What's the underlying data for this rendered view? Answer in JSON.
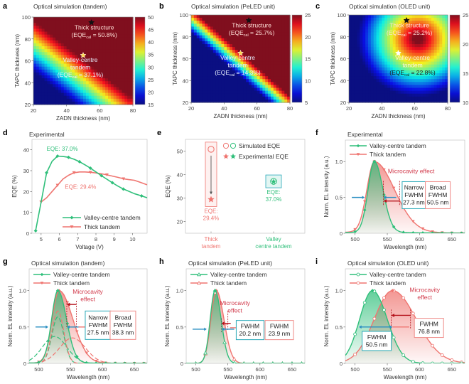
{
  "colors": {
    "green": "#2fbf7a",
    "red": "#ef7570",
    "dark_red": "#b5121b",
    "blue_arrow": "#2a8fc2",
    "teal_box": "#29a9b8",
    "pink_box": "#ef8a87",
    "axis": "#555555",
    "frame": "#aaaaaa"
  },
  "chart_data": [
    {
      "id": "a",
      "panel_label": "a",
      "type": "heatmap",
      "title": "Optical simulation (tandem)",
      "xlabel": "ZADN thickness (nm)",
      "ylabel": "TAPC thickness (nm)",
      "xlim": [
        20,
        80
      ],
      "ylim": [
        20,
        100
      ],
      "xticks": [
        "20",
        "40",
        "60",
        "80"
      ],
      "yticks": [
        "20",
        "40",
        "60",
        "80",
        "100"
      ],
      "colorbar": {
        "min": 15,
        "max": 50,
        "ticks": [
          "15",
          "20",
          "25",
          "30",
          "35",
          "40",
          "45",
          "50"
        ]
      },
      "markers": [
        {
          "name": "thick-structure",
          "x": 55,
          "y": 95,
          "style": "filled-star",
          "label_lines": [
            "Thick structure",
            "(EQE",
            "cal",
            " = 50.8%)"
          ],
          "value": 50.8
        },
        {
          "name": "valley-centre-tandem",
          "x": 50,
          "y": 65,
          "style": "open-star",
          "label_lines": [
            "Valley-centre",
            "tandem",
            "(EQE",
            "cal",
            " = 37.1%)"
          ],
          "value": 37.1
        }
      ]
    },
    {
      "id": "b",
      "panel_label": "b",
      "type": "heatmap",
      "title": "Optical simulation (PeLED unit)",
      "xlabel": "ZADN thickness (nm)",
      "ylabel": "TAPC thickness (nm)",
      "xlim": [
        20,
        80
      ],
      "ylim": [
        20,
        100
      ],
      "xticks": [
        "20",
        "40",
        "60",
        "80"
      ],
      "yticks": [
        "20",
        "40",
        "60",
        "80",
        "100"
      ],
      "colorbar": {
        "min": 5,
        "max": 25,
        "ticks": [
          "5",
          "10",
          "15",
          "20",
          "25"
        ]
      },
      "markers": [
        {
          "name": "thick-structure",
          "x": 55,
          "y": 95,
          "style": "filled-star",
          "label_lines": [
            "Thick structure",
            "(EQE",
            "cal",
            " = 25.7%)"
          ],
          "value": 25.7
        },
        {
          "name": "valley-centre-tandem",
          "x": 50,
          "y": 65,
          "style": "open-star",
          "label_lines": [
            "Valley-centre",
            "tandem",
            "(EQE",
            "cal",
            " = 14.3%)"
          ],
          "value": 14.3
        }
      ]
    },
    {
      "id": "c",
      "panel_label": "c",
      "type": "heatmap",
      "title": "Optical simulation (OLED unit)",
      "xlabel": "ZADN thickness (nm)",
      "ylabel": "TAPC thickness (nm)",
      "xlim": [
        20,
        80
      ],
      "ylim": [
        20,
        100
      ],
      "xticks": [
        "20",
        "40",
        "60",
        "80"
      ],
      "yticks": [
        "20",
        "40",
        "60",
        "80",
        "100"
      ],
      "colorbar": {
        "min": 10,
        "max": 25,
        "ticks": [
          "10",
          "15",
          "20",
          "25"
        ]
      },
      "markers": [
        {
          "name": "thick-structure",
          "x": 55,
          "y": 95,
          "style": "filled-star",
          "label_lines": [
            "Thick structure",
            "(EQE",
            "cal",
            " = 25.2%)"
          ],
          "value": 25.2
        },
        {
          "name": "valley-centre-tandem",
          "x": 50,
          "y": 65,
          "style": "open-star-white",
          "label_lines": [
            "Valley-centre",
            "tandem",
            "(EQE",
            "cal",
            " = 22.8%)"
          ],
          "value": 22.8
        }
      ]
    },
    {
      "id": "d",
      "panel_label": "d",
      "type": "line",
      "title": "Experimental",
      "xlabel": "Voltage (V)",
      "ylabel": "EQE (%)",
      "xlim": [
        4.5,
        10.8
      ],
      "ylim": [
        0,
        45
      ],
      "xticks": [
        5,
        6,
        7,
        8,
        9,
        10
      ],
      "yticks": [
        0,
        10,
        20,
        30,
        40
      ],
      "legend": "bottom-right",
      "series": [
        {
          "name": "Valley-centre tandem",
          "color_key": "green",
          "marker": "diamond",
          "x": [
            4.7,
            5.0,
            5.3,
            5.6,
            5.9,
            6.2,
            6.5,
            6.8,
            7.1,
            7.4,
            7.7,
            8.0,
            8.3,
            8.6,
            8.9,
            9.2,
            9.5,
            9.8,
            10.1,
            10.5,
            10.8
          ],
          "y": [
            1.2,
            15,
            29,
            34.5,
            37.0,
            36.8,
            36.4,
            35.5,
            34.3,
            32.8,
            31.2,
            29.4,
            27.6,
            25.9,
            24.2,
            22.6,
            21.2,
            20.1,
            19.0,
            17.9,
            17.0
          ],
          "marker_indices": [
            0,
            2,
            4,
            6,
            8,
            10,
            12,
            14,
            16,
            19
          ]
        },
        {
          "name": "Thick tandem",
          "color_key": "red",
          "marker": "triangle-down",
          "x": [
            5.0,
            5.3,
            5.6,
            5.9,
            6.2,
            6.5,
            6.8,
            7.1,
            7.4,
            7.7,
            8.0,
            8.3,
            8.6,
            8.9,
            9.2,
            9.5,
            9.8,
            10.1,
            10.4,
            10.8
          ],
          "y": [
            15,
            17,
            20,
            23,
            26,
            27.8,
            29.0,
            29.4,
            29.4,
            29.2,
            28.9,
            28.5,
            28.0,
            27.4,
            26.8,
            26.1,
            25.7,
            25.4,
            24.5,
            23.2
          ],
          "marker_indices": [
            0,
            3,
            6,
            9,
            12,
            15
          ]
        }
      ],
      "annotations": [
        {
          "text": "EQE: 37.0%",
          "x": 5.3,
          "y": 39.5,
          "color_key": "green"
        },
        {
          "text": "EQE: 29.4%",
          "x": 6.3,
          "y": 21.3,
          "color_key": "red"
        }
      ]
    },
    {
      "id": "e",
      "panel_label": "e",
      "type": "scatter",
      "title": "",
      "xlabel": "",
      "ylabel": "EQE (%)",
      "ylim": [
        15,
        55
      ],
      "yticks": [
        20,
        30,
        40,
        50
      ],
      "categories": [
        "Thick tandem",
        "Valley centre tandem"
      ],
      "category_lines": [
        [
          "Thick",
          "tandem"
        ],
        [
          "Valley",
          "centre tandem"
        ]
      ],
      "legend_entries": [
        "Simulated EQE",
        "Experimental EQE"
      ],
      "points": [
        {
          "category": "Thick tandem",
          "simulated": 50.8,
          "experimental": 29.4,
          "color_key": "red",
          "label_lines": [
            "EQE:",
            "29.4%"
          ]
        },
        {
          "category": "Valley centre tandem",
          "simulated": 37.1,
          "experimental": 37.0,
          "color_key": "green",
          "label_lines": [
            "EQE:",
            "37.0%"
          ]
        }
      ]
    },
    {
      "id": "f",
      "panel_label": "f",
      "type": "area",
      "title": "Experimental",
      "xlabel": "Wavelength (nm)",
      "ylabel": "Norm. EL intensity (a.u.)",
      "xlim": [
        485,
        670
      ],
      "ylim": [
        0,
        1.3
      ],
      "xticks": [
        500,
        550,
        600,
        650
      ],
      "yticks": [
        0,
        0.5,
        1.0
      ],
      "ytick_labels": [
        "0",
        "0.5",
        "1.0"
      ],
      "legend": "top-left",
      "series": [
        {
          "name": "Valley-centre tandem",
          "color_key": "green",
          "marker": "diamond",
          "peak": 530,
          "fwhm": 27.3,
          "skew": 1.35,
          "tail": 0.02
        },
        {
          "name": "Thick tandem",
          "color_key": "red",
          "marker": "triangle-down",
          "peak": 530,
          "fwhm": 50.5,
          "skew": 2.7,
          "tail": 0.03
        }
      ],
      "microcavity_label": "Microcavity effect",
      "fwhm_boxes": [
        {
          "lines": [
            "Narrow",
            "FWHM",
            "27.3 nm"
          ],
          "color_key": "teal_box"
        },
        {
          "lines": [
            "Broad",
            "FWHM",
            "50.5 nm"
          ],
          "color_key": "pink_box"
        }
      ],
      "dashed_markers_x": [
        544,
        569
      ]
    },
    {
      "id": "g",
      "panel_label": "g",
      "type": "area",
      "title": "Optical simulation (tandem)",
      "xlabel": "Wavelength (nm)",
      "ylabel": "Norm. EL intensity (a.u.)",
      "xlim": [
        485,
        670
      ],
      "ylim": [
        0,
        1.3
      ],
      "xticks": [
        500,
        550,
        600,
        650
      ],
      "yticks": [
        0,
        0.5,
        1.0
      ],
      "ytick_labels": [
        "0",
        "0.5",
        "1.0"
      ],
      "legend": "top-left",
      "series": [
        {
          "name": "Valley-centre tandem",
          "color_key": "green",
          "marker": "diamond",
          "peak": 530,
          "fwhm": 27.5,
          "skew": 1.4,
          "tail": 0.01
        },
        {
          "name": "Thick tandem",
          "color_key": "red",
          "marker": "triangle-down",
          "peak": 532,
          "fwhm": 38.3,
          "skew": 2.0,
          "tail": 0.01
        }
      ],
      "components": [
        {
          "color_key": "green",
          "peak": 530,
          "fwhm": 22,
          "amp": 0.64
        },
        {
          "color_key": "green",
          "peak": 525,
          "fwhm": 45,
          "amp": 0.37
        },
        {
          "color_key": "red",
          "peak": 530,
          "fwhm": 22,
          "amp": 0.72
        },
        {
          "color_key": "red",
          "peak": 553,
          "fwhm": 48,
          "amp": 0.35
        }
      ],
      "microcavity_label_lines": [
        "Microcavity",
        "effect"
      ],
      "fwhm_boxes": [
        {
          "lines": [
            "Narrow",
            "FWHM",
            "27.5 nm"
          ],
          "color_key": "teal_box"
        },
        {
          "lines": [
            "Broad",
            "FWHM",
            "38.3 nm"
          ],
          "color_key": "pink_box"
        }
      ],
      "dashed_markers_x": [
        544,
        559
      ]
    },
    {
      "id": "h",
      "panel_label": "h",
      "type": "area",
      "title": "Optical simulation (PeLED unit)",
      "xlabel": "Wavelength (nm)",
      "ylabel": "Norm. EL intensity (a.u.)",
      "xlim": [
        485,
        670
      ],
      "ylim": [
        0,
        1.3
      ],
      "xticks": [
        500,
        550,
        600,
        650
      ],
      "yticks": [
        0,
        0.5,
        1.0
      ],
      "ytick_labels": [
        "0",
        "0.5",
        "1.0"
      ],
      "legend": "top-left",
      "series": [
        {
          "name": "Valley-centre tandem",
          "color_key": "green",
          "marker": "open-triangle",
          "peak": 530,
          "fwhm": 20.2,
          "skew": 1.25,
          "tail": 0.0
        },
        {
          "name": "Thick tandem",
          "color_key": "red",
          "marker": "open-triangle",
          "peak": 532,
          "fwhm": 23.9,
          "skew": 1.4,
          "tail": 0.0
        }
      ],
      "microcavity_label_lines": [
        "Microcavity",
        "effect"
      ],
      "fwhm_boxes": [
        {
          "lines": [
            "FWHM",
            "20.2 nm"
          ],
          "color_key": "teal_box"
        },
        {
          "lines": [
            "FWHM",
            "23.9 nm"
          ],
          "color_key": "pink_box"
        }
      ],
      "dashed_markers_x": [
        540,
        550
      ]
    },
    {
      "id": "i",
      "panel_label": "i",
      "type": "area",
      "title": "Optical simulation (OLED unit)",
      "xlabel": "Wavelength (nm)",
      "ylabel": "Norm. EL intensity (a.u.)",
      "xlim": [
        485,
        670
      ],
      "ylim": [
        0,
        1.3
      ],
      "xticks": [
        500,
        550,
        600,
        650
      ],
      "yticks": [
        0,
        0.5,
        1.0
      ],
      "ytick_labels": [
        "0",
        "0.5",
        "1.0"
      ],
      "legend": "top-left",
      "series": [
        {
          "name": "Valley-centre tandem",
          "color_key": "green",
          "marker": "open-circle",
          "peak": 527,
          "fwhm": 50.5,
          "skew": 1.15,
          "tail": 0.0
        },
        {
          "name": "Thick tandem",
          "color_key": "red",
          "marker": "open-circle",
          "peak": 558,
          "fwhm": 76.8,
          "skew": 1.3,
          "tail": 0.0
        }
      ],
      "microcavity_label_lines": [
        "Microcavity",
        "effect"
      ],
      "fwhm_boxes": [
        {
          "lines": [
            "FWHM",
            "50.5 nm"
          ],
          "color_key": "teal_box"
        },
        {
          "lines": [
            "FWHM",
            "76.8 nm"
          ],
          "color_key": "pink_box"
        }
      ],
      "dashed_markers_x": [
        556,
        586
      ]
    }
  ]
}
